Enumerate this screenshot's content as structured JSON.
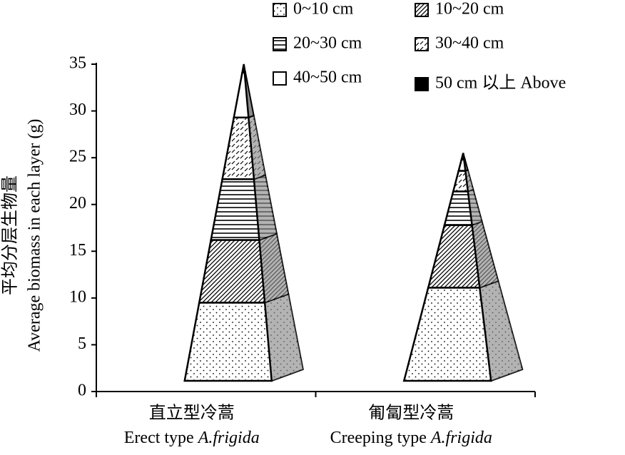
{
  "chart_data": {
    "type": "pyramid-stack",
    "ylabel": "Average biomass in each layer (g)",
    "ylabel_zh": "平均分层生物量",
    "categories": [
      "直立型冷蒿",
      "匍匐型冷蒿"
    ],
    "categories_en": [
      "Erect type",
      "Creeping type"
    ],
    "species": "A.frigida",
    "series": [
      {
        "name": "0~10 cm",
        "pattern": "dots",
        "values": [
          9.5,
          11.1
        ]
      },
      {
        "name": "10~20 cm",
        "pattern": "diagonal",
        "values": [
          6.7,
          6.7
        ]
      },
      {
        "name": "20~30 cm",
        "pattern": "horizontal",
        "values": [
          6.5,
          3.6
        ]
      },
      {
        "name": "30~40 cm",
        "pattern": "dashes",
        "values": [
          6.6,
          2.2
        ]
      },
      {
        "name": "40~50 cm",
        "pattern": "blank",
        "values": [
          4.8,
          1.2
        ]
      },
      {
        "name": "50 cm 以上 Above",
        "pattern": "solid",
        "values": [
          0.9,
          0.7
        ]
      }
    ],
    "ylim": [
      0,
      35
    ],
    "yticks": [
      0,
      5,
      10,
      15,
      20,
      25,
      30,
      35
    ],
    "side_color": "#8a8a8a"
  }
}
